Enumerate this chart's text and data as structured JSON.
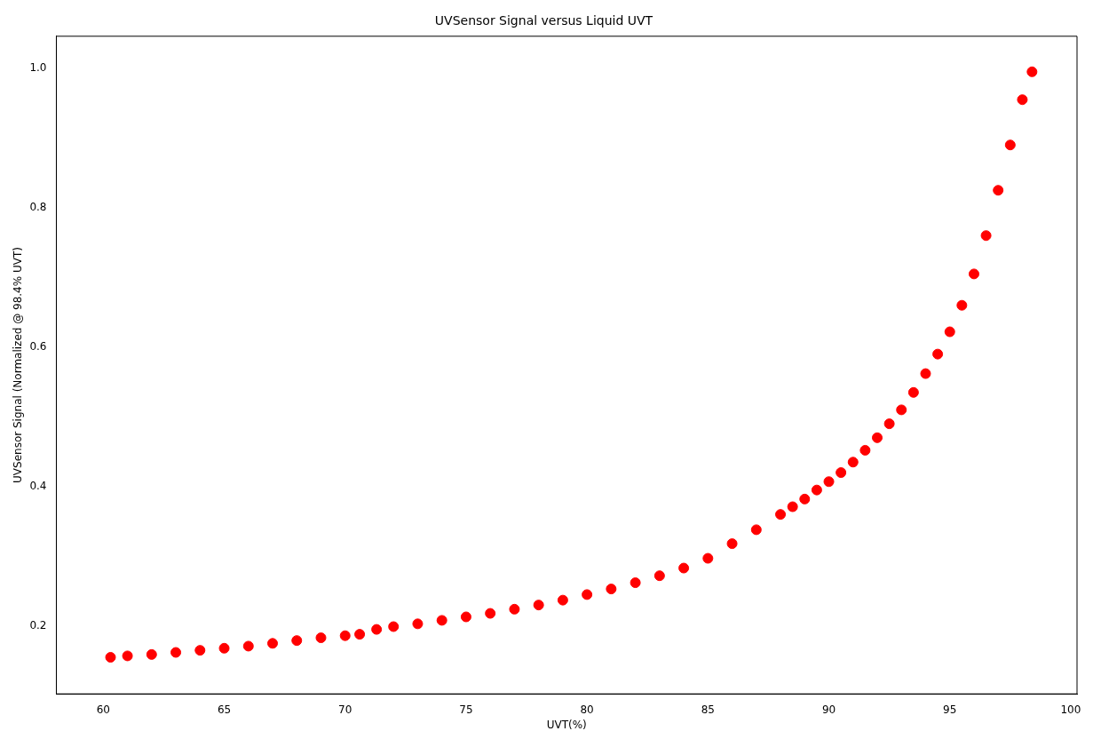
{
  "chart_data": {
    "type": "scatter",
    "title": "UVSensor Signal versus Liquid UVT",
    "xlabel": "UVT(%)",
    "ylabel": "UVSensor Signal (Normalized @ 98.4% UVT)",
    "x": [
      60.3,
      61,
      62,
      63,
      64,
      65,
      66,
      67,
      68,
      69,
      70,
      70.6,
      71.3,
      72,
      73,
      74,
      75,
      76,
      77,
      78,
      79,
      80,
      81,
      82,
      83,
      84,
      85,
      86,
      87,
      88,
      88.5,
      89,
      89.5,
      90,
      90.5,
      91,
      91.5,
      92,
      92.5,
      93,
      93.5,
      94,
      94.5,
      95,
      95.5,
      96,
      96.5,
      97,
      97.5,
      98,
      98.4
    ],
    "series": [
      {
        "color": "#ff0000",
        "values": [
          0.155,
          0.157,
          0.159,
          0.162,
          0.165,
          0.168,
          0.171,
          0.175,
          0.179,
          0.183,
          0.186,
          0.188,
          0.195,
          0.199,
          0.203,
          0.208,
          0.213,
          0.218,
          0.224,
          0.23,
          0.237,
          0.245,
          0.253,
          0.262,
          0.272,
          0.283,
          0.297,
          0.318,
          0.338,
          0.36,
          0.371,
          0.382,
          0.395,
          0.407,
          0.42,
          0.435,
          0.452,
          0.47,
          0.49,
          0.51,
          0.535,
          0.562,
          0.59,
          0.622,
          0.66,
          0.705,
          0.76,
          0.825,
          0.89,
          0.955,
          0.995
        ]
      }
    ],
    "xlim": [
      58.06,
      100.26
    ],
    "ylim": [
      0.1025,
      1.046
    ],
    "xticks": [
      60,
      65,
      70,
      75,
      80,
      85,
      90,
      95,
      100
    ],
    "yticks": [
      {
        "value": 0.2,
        "label": "0.2"
      },
      {
        "value": 0.4,
        "label": "0.4"
      },
      {
        "value": 0.6,
        "label": "0.6"
      },
      {
        "value": 0.8,
        "label": "0.8"
      },
      {
        "value": 1.0,
        "label": "1.0"
      }
    ],
    "marker": "circle",
    "grid": false,
    "legend": false
  }
}
